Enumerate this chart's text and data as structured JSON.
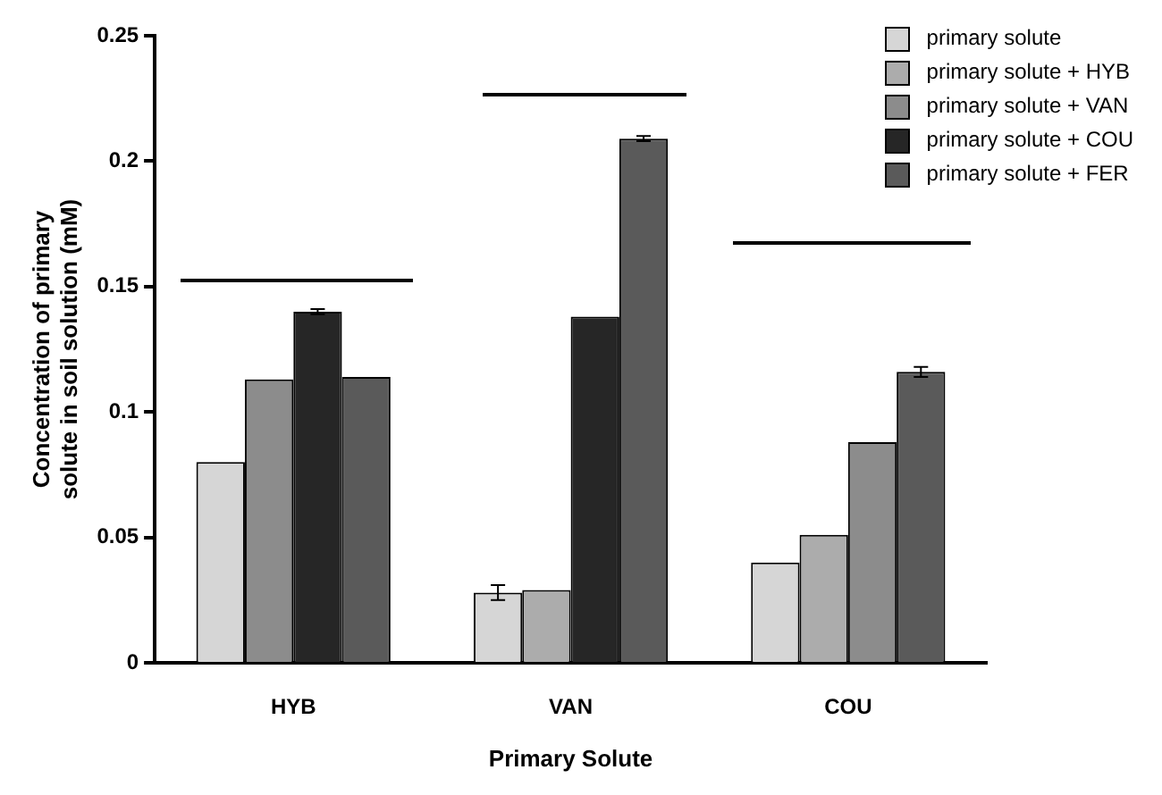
{
  "chart_data": {
    "type": "bar",
    "categories": [
      "HYB",
      "VAN",
      "COU"
    ],
    "xlabel": "Primary Solute",
    "ylabel": "Concentration of primary solute in soil solution (mM)",
    "series": [
      {
        "name": "primary solute",
        "color": "#d6d6d6",
        "values": [
          0.08,
          0.028,
          0.04
        ],
        "errors": [
          null,
          0.003,
          null
        ]
      },
      {
        "name": "primary solute + HYB",
        "color": "#acacac",
        "values": [
          null,
          0.029,
          0.051
        ]
      },
      {
        "name": "primary solute + VAN",
        "color": "#8c8c8c",
        "values": [
          0.113,
          null,
          0.088
        ]
      },
      {
        "name": "primary solute + COU",
        "color": "#262626",
        "values": [
          0.14,
          0.138,
          null
        ],
        "errors": [
          0.001,
          null,
          null
        ]
      },
      {
        "name": "primary solute + FER",
        "color": "#5a5a5a",
        "values": [
          0.114,
          0.209,
          0.116
        ],
        "errors": [
          null,
          0.001,
          0.002
        ]
      }
    ],
    "ylim": [
      0,
      0.25
    ],
    "yticks": [
      0,
      0.05,
      0.1,
      0.15,
      0.2,
      0.25
    ],
    "grid": false,
    "legend": "top right"
  }
}
